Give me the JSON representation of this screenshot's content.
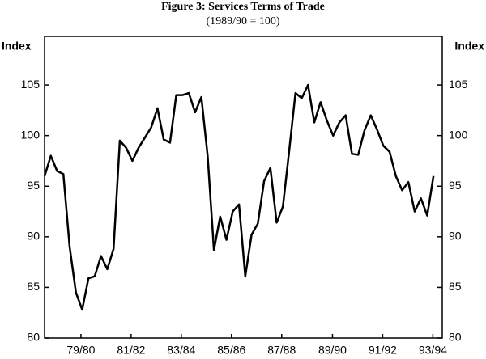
{
  "chart_data": {
    "type": "line",
    "title": "Figure 3: Services Terms of Trade",
    "subtitle": "(1989/90 = 100)",
    "ylabel": "Index",
    "y2label": "Index",
    "color": "#000000",
    "x": [
      0,
      1,
      2,
      3,
      4,
      5,
      6,
      7,
      8,
      9,
      10,
      11,
      12,
      13,
      14,
      15,
      16,
      17,
      18,
      19,
      20,
      21,
      22,
      23,
      24,
      25,
      26,
      27,
      28,
      29,
      30,
      31,
      32,
      33,
      34,
      35,
      36,
      37,
      38,
      39,
      40,
      41,
      42,
      43,
      44,
      45,
      46,
      47,
      48,
      49,
      50,
      51,
      52,
      53,
      54,
      55,
      56,
      57,
      58,
      59,
      60,
      61,
      62
    ],
    "values": [
      96,
      98,
      96.5,
      96.2,
      89,
      84.5,
      82.8,
      85.9,
      86.1,
      88.1,
      86.8,
      88.8,
      99.5,
      98.8,
      97.5,
      98.8,
      99.8,
      100.8,
      102.7,
      99.6,
      99.3,
      104,
      104,
      104.2,
      102.3,
      103.8,
      98,
      88.7,
      92,
      89.7,
      92.5,
      93.2,
      86.1,
      90.2,
      91.3,
      95.5,
      96.8,
      91.4,
      93,
      98.5,
      104.2,
      103.7,
      105,
      101.3,
      103.3,
      101.5,
      100,
      101.3,
      102,
      98.2,
      98.1,
      100.5,
      102,
      100.6,
      99,
      98.4,
      96,
      94.6,
      95.4,
      92.5,
      93.8,
      92.1,
      96
    ],
    "xlim": [
      0,
      63.4
    ],
    "xticks": [
      {
        "value": 5.8,
        "label": "79/80"
      },
      {
        "value": 13.8,
        "label": "81/82"
      },
      {
        "value": 21.8,
        "label": "83/84"
      },
      {
        "value": 29.8,
        "label": "85/86"
      },
      {
        "value": 37.8,
        "label": "87/88"
      },
      {
        "value": 45.9,
        "label": "89/90"
      },
      {
        "value": 53.9,
        "label": "91/92"
      },
      {
        "value": 61.9,
        "label": "93/94"
      }
    ],
    "ylim": [
      80,
      109.8
    ],
    "yticks": [
      80,
      85,
      90,
      95,
      100,
      105
    ],
    "y2lim": [
      80,
      109.8
    ],
    "y2ticks": [
      80,
      85,
      90,
      95,
      100,
      105
    ]
  }
}
